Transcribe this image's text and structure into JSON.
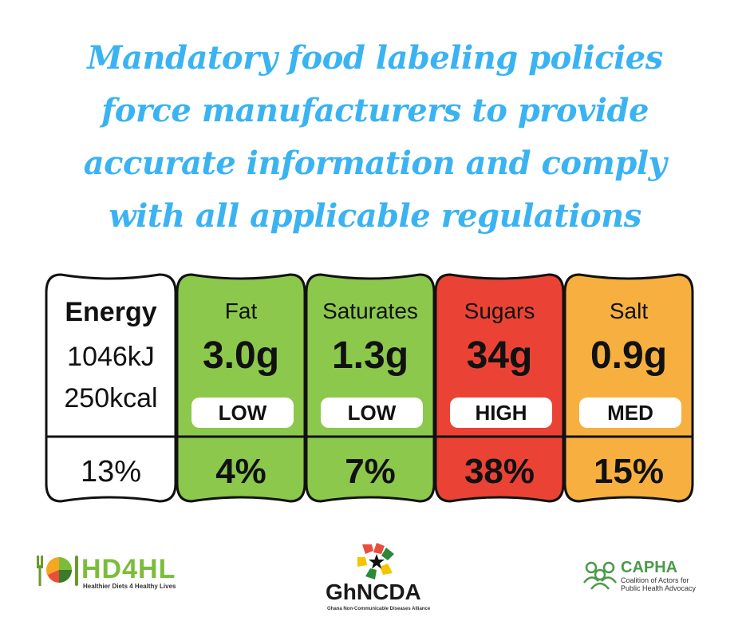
{
  "headline": {
    "lines": [
      "Mandatory food labeling policies",
      "force manufacturers to provide",
      "accurate information and comply",
      "with all applicable regulations"
    ]
  },
  "label": {
    "energy": {
      "title": "Energy",
      "kj": "1046kJ",
      "kcal": "250kcal",
      "percent": "13%"
    },
    "nutrients": [
      {
        "name": "Fat",
        "amount": "3.0g",
        "level": "LOW",
        "percent": "4%",
        "color": "#8cc84b"
      },
      {
        "name": "Saturates",
        "amount": "1.3g",
        "level": "LOW",
        "percent": "7%",
        "color": "#8cc84b"
      },
      {
        "name": "Sugars",
        "amount": "34g",
        "level": "HIGH",
        "percent": "38%",
        "color": "#ea4335"
      },
      {
        "name": "Salt",
        "amount": "0.9g",
        "level": "MED",
        "percent": "15%",
        "color": "#f7b03f"
      }
    ]
  },
  "logos": {
    "hd4hl": {
      "name": "HD4HL",
      "tagline": "Healthier Diets 4 Healthy Lives"
    },
    "ghncda": {
      "name": "GhNCDA",
      "tagline": "Ghana Non-Communicable Diseases Alliance"
    },
    "capha": {
      "name": "CAPHA",
      "tagline_line1": "Coalition of Actors for",
      "tagline_line2": "Public Health Advocacy"
    }
  }
}
